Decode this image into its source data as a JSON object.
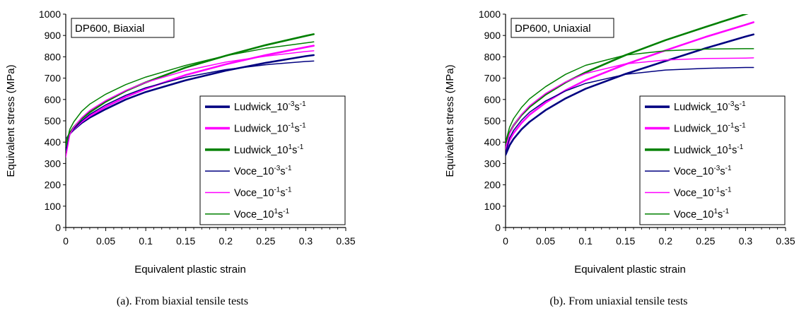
{
  "chart_data": [
    {
      "type": "line",
      "panel_title": "DP600, Biaxial",
      "caption": "(a). From biaxial tensile tests",
      "xlabel": "Equivalent plastic strain",
      "ylabel": "Equivalent stress (MPa)",
      "xlim": [
        0,
        0.35
      ],
      "ylim": [
        0,
        1000
      ],
      "xticks": [
        "0",
        "0.05",
        "0.1",
        "0.15",
        "0.2",
        "0.25",
        "0.3",
        "0.35"
      ],
      "yticks": [
        "0",
        "100",
        "200",
        "300",
        "400",
        "500",
        "600",
        "700",
        "800",
        "900",
        "1000"
      ],
      "grid": false,
      "legend_position": "bottom-right",
      "series": [
        {
          "label_base": "Ludwick_10",
          "label_exp": "-3",
          "label_unit": "s",
          "label_unit_exp": "-1",
          "color": "#000080",
          "style": "thick",
          "x": [
            0,
            0.005,
            0.01,
            0.02,
            0.03,
            0.05,
            0.075,
            0.1,
            0.15,
            0.2,
            0.25,
            0.3,
            0.31
          ],
          "y": [
            410,
            440,
            458,
            490,
            515,
            555,
            600,
            635,
            690,
            735,
            772,
            803,
            808
          ]
        },
        {
          "label_base": "Ludwick_10",
          "label_exp": "-1",
          "label_unit": "s",
          "label_unit_exp": "-1",
          "color": "#ff00ff",
          "style": "thick",
          "x": [
            0,
            0.005,
            0.01,
            0.02,
            0.03,
            0.05,
            0.075,
            0.1,
            0.15,
            0.2,
            0.25,
            0.3,
            0.31
          ],
          "y": [
            405,
            440,
            462,
            496,
            523,
            566,
            612,
            650,
            715,
            765,
            808,
            845,
            852
          ]
        },
        {
          "label_base": "Ludwick_10",
          "label_exp": "1",
          "label_unit": "s",
          "label_unit_exp": "-1",
          "color": "#008000",
          "style": "thick",
          "x": [
            0,
            0.005,
            0.01,
            0.02,
            0.03,
            0.05,
            0.075,
            0.1,
            0.15,
            0.2,
            0.25,
            0.3,
            0.31
          ],
          "y": [
            400,
            443,
            470,
            510,
            540,
            590,
            640,
            680,
            750,
            805,
            855,
            898,
            906
          ]
        },
        {
          "label_base": "Voce_10",
          "label_exp": "-3",
          "label_unit": "s",
          "label_unit_exp": "-1",
          "color": "#000080",
          "style": "thin",
          "x": [
            0,
            0.005,
            0.01,
            0.02,
            0.03,
            0.05,
            0.075,
            0.1,
            0.15,
            0.2,
            0.25,
            0.3,
            0.31
          ],
          "y": [
            360,
            435,
            462,
            500,
            530,
            575,
            620,
            655,
            705,
            740,
            763,
            778,
            780
          ]
        },
        {
          "label_base": "Voce_10",
          "label_exp": "-1",
          "label_unit": "s",
          "label_unit_exp": "-1",
          "color": "#ff00ff",
          "style": "thin",
          "x": [
            0,
            0.005,
            0.01,
            0.02,
            0.03,
            0.05,
            0.075,
            0.1,
            0.15,
            0.2,
            0.25,
            0.3,
            0.31
          ],
          "y": [
            330,
            435,
            470,
            515,
            548,
            595,
            642,
            680,
            735,
            775,
            803,
            825,
            828
          ]
        },
        {
          "label_base": "Voce_10",
          "label_exp": "1",
          "label_unit": "s",
          "label_unit_exp": "-1",
          "color": "#008000",
          "style": "thin",
          "x": [
            0,
            0.005,
            0.01,
            0.02,
            0.03,
            0.05,
            0.075,
            0.1,
            0.15,
            0.2,
            0.25,
            0.3,
            0.31
          ],
          "y": [
            380,
            460,
            495,
            545,
            578,
            625,
            670,
            705,
            760,
            805,
            840,
            865,
            870
          ]
        }
      ]
    },
    {
      "type": "line",
      "panel_title": "DP600, Uniaxial",
      "caption": "(b). From uniaxial tensile tests",
      "xlabel": "Equivalent plastic strain",
      "ylabel": "Equivalent stress (MPa)",
      "xlim": [
        0,
        0.35
      ],
      "ylim": [
        0,
        1000
      ],
      "xticks": [
        "0",
        "0.05",
        "0.1",
        "0.15",
        "0.2",
        "0.25",
        "0.3",
        "0.35"
      ],
      "yticks": [
        "0",
        "100",
        "200",
        "300",
        "400",
        "500",
        "600",
        "700",
        "800",
        "900",
        "1000"
      ],
      "grid": false,
      "legend_position": "bottom-right",
      "series": [
        {
          "label_base": "Ludwick_10",
          "label_exp": "-3",
          "label_unit": "s",
          "label_unit_exp": "-1",
          "color": "#000080",
          "style": "thick",
          "x": [
            0,
            0.005,
            0.01,
            0.02,
            0.03,
            0.05,
            0.075,
            0.1,
            0.15,
            0.2,
            0.25,
            0.3,
            0.31
          ],
          "y": [
            340,
            385,
            415,
            460,
            495,
            550,
            605,
            650,
            720,
            780,
            840,
            895,
            905
          ]
        },
        {
          "label_base": "Ludwick_10",
          "label_exp": "-1",
          "label_unit": "s",
          "label_unit_exp": "-1",
          "color": "#ff00ff",
          "style": "thick",
          "x": [
            0,
            0.005,
            0.01,
            0.02,
            0.03,
            0.05,
            0.075,
            0.1,
            0.15,
            0.2,
            0.25,
            0.3,
            0.31
          ],
          "y": [
            360,
            410,
            442,
            490,
            528,
            585,
            643,
            690,
            765,
            830,
            893,
            950,
            962
          ]
        },
        {
          "label_base": "Ludwick_10",
          "label_exp": "1",
          "label_unit": "s",
          "label_unit_exp": "-1",
          "color": "#008000",
          "style": "thick",
          "x": [
            0,
            0.005,
            0.01,
            0.02,
            0.03,
            0.05,
            0.075,
            0.1,
            0.15,
            0.2,
            0.25,
            0.3,
            0.31
          ],
          "y": [
            395,
            445,
            478,
            527,
            565,
            623,
            680,
            727,
            808,
            878,
            940,
            1000,
            1012
          ]
        },
        {
          "label_base": "Voce_10",
          "label_exp": "-3",
          "label_unit": "s",
          "label_unit_exp": "-1",
          "color": "#000080",
          "style": "thin",
          "x": [
            0,
            0.005,
            0.01,
            0.02,
            0.03,
            0.05,
            0.075,
            0.1,
            0.15,
            0.2,
            0.25,
            0.3,
            0.31
          ],
          "y": [
            350,
            420,
            455,
            503,
            540,
            593,
            640,
            675,
            718,
            738,
            746,
            750,
            750
          ]
        },
        {
          "label_base": "Voce_10",
          "label_exp": "-1",
          "label_unit": "s",
          "label_unit_exp": "-1",
          "color": "#ff00ff",
          "style": "thin",
          "x": [
            0,
            0.005,
            0.01,
            0.02,
            0.03,
            0.05,
            0.075,
            0.1,
            0.15,
            0.2,
            0.25,
            0.3,
            0.31
          ],
          "y": [
            370,
            440,
            478,
            530,
            570,
            628,
            682,
            722,
            767,
            785,
            792,
            794,
            795
          ]
        },
        {
          "label_base": "Voce_10",
          "label_exp": "1",
          "label_unit": "s",
          "label_unit_exp": "-1",
          "color": "#008000",
          "style": "thin",
          "x": [
            0,
            0.005,
            0.01,
            0.02,
            0.03,
            0.05,
            0.075,
            0.1,
            0.15,
            0.2,
            0.25,
            0.3,
            0.31
          ],
          "y": [
            400,
            470,
            510,
            563,
            603,
            660,
            718,
            760,
            808,
            828,
            836,
            838,
            838
          ]
        }
      ]
    }
  ]
}
